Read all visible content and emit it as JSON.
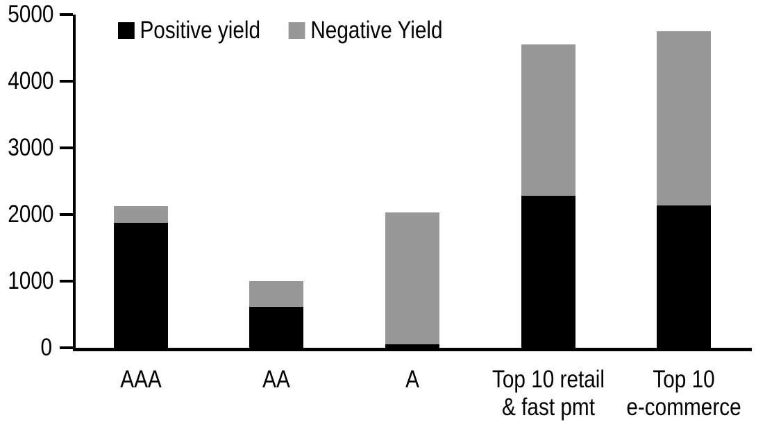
{
  "chart_data": {
    "type": "bar",
    "stacked": true,
    "title": "",
    "categories": [
      "AAA",
      "AA",
      "A",
      "Top 10 retail\n& fast pmt",
      "Top 10\ne-commerce"
    ],
    "series": [
      {
        "name": "Positive yield",
        "color": "#000000",
        "values": [
          1880,
          610,
          50,
          2280,
          2140
        ]
      },
      {
        "name": "Negative Yield",
        "color": "#989898",
        "values": [
          240,
          390,
          1980,
          2270,
          2610
        ]
      }
    ],
    "totals": [
      2120,
      1000,
      2030,
      4550,
      4750
    ],
    "xlabel": "",
    "ylabel": "",
    "ylim": [
      0,
      5000
    ],
    "yticks": [
      0,
      1000,
      2000,
      3000,
      4000,
      5000
    ],
    "grid": false,
    "legend_position": "top",
    "axis_color": "#000000",
    "background_color": "#ffffff"
  }
}
